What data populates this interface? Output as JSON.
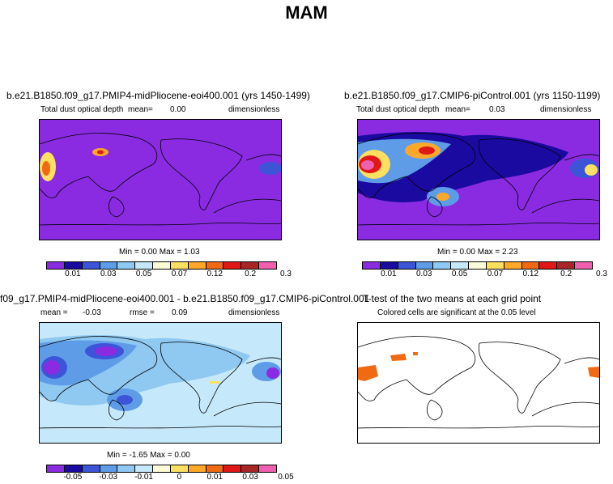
{
  "figure": {
    "title": "MAM"
  },
  "panels": [
    {
      "title": "b.e21.B1850.f09_g17.PMIP4-midPliocene-eoi400.001 (yrs 1450-1499)",
      "subtitle": "Total dust optical depth",
      "mean_label": "mean=",
      "mean_value": "0.00",
      "units": "dimensionless",
      "min_max": "Min =   0.00  Max =   1.03"
    },
    {
      "title": "b.e21.B1850.f09_g17.CMIP6-piControl.001 (yrs 1150-1199)",
      "subtitle": "Total dust optical depth",
      "mean_label": "mean=",
      "mean_value": "0.03",
      "units": "dimensionless",
      "min_max": "Min =   0.00  Max =   2.23"
    },
    {
      "title": "f09_g17.PMIP4-midPliocene-eoi400.001 - b.e21.B1850.f09_g17.CMIP6-piControl.001",
      "mean_label": "mean =",
      "mean_value": "-0.03",
      "rmse_label": "rmse =",
      "rmse_value": "0.09",
      "units": "dimensionless",
      "min_max": "Min =  -1.65  Max =   0.00"
    },
    {
      "title": "T-test of the two means at each grid point",
      "subtitle": "Colored cells are significant at the 0.05 level"
    }
  ],
  "colorbars": {
    "abs": {
      "colors": [
        "#8a2be2",
        "#1a0aa0",
        "#3c55d8",
        "#5e9ce8",
        "#8fc8f0",
        "#c5e8fa",
        "#fbfbd8",
        "#fde060",
        "#fca82a",
        "#f06a14",
        "#e01818",
        "#a82626",
        "#f060b0"
      ],
      "labels": [
        "0.01",
        "0.03",
        "0.05",
        "0.07",
        "0.12",
        "0.2",
        "0.3"
      ]
    },
    "diff": {
      "colors": [
        "#8a2be2",
        "#1a0aa0",
        "#3c55d8",
        "#5e9ce8",
        "#8fc8f0",
        "#c5e8fa",
        "#fbfbd8",
        "#fde060",
        "#fca82a",
        "#f06a14",
        "#e01818",
        "#a82626",
        "#f060b0"
      ],
      "labels": [
        "-0.05",
        "-0.03",
        "-0.01",
        "0",
        "0.01",
        "0.03",
        "0.05"
      ]
    }
  }
}
